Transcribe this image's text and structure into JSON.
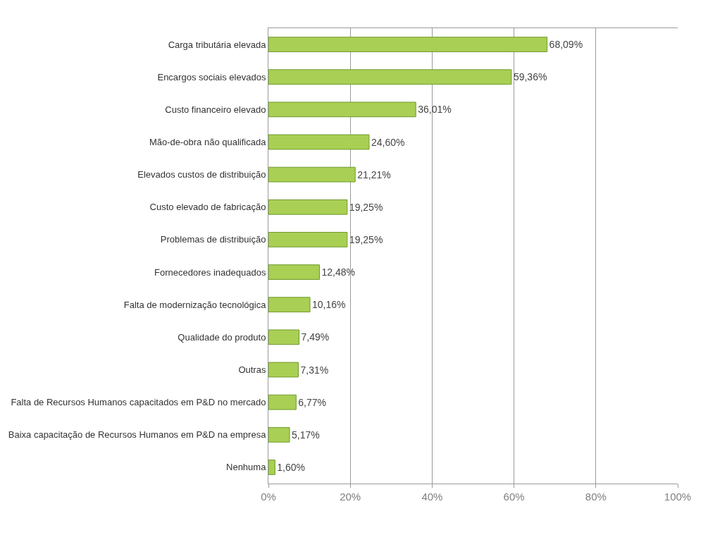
{
  "chart_data": {
    "type": "bar",
    "orientation": "horizontal",
    "categories": [
      "Carga tributária elevada",
      "Encargos sociais elevados",
      "Custo financeiro elevado",
      "Mão-de-obra não qualificada",
      "Elevados custos de distribuição",
      "Custo elevado de fabricação",
      "Problemas de distribuição",
      "Fornecedores inadequados",
      "Falta de modernização tecnológica",
      "Qualidade do produto",
      "Outras",
      "Falta de Recursos Humanos capacitados em P&D no mercado",
      "Baixa capacitação de Recursos Humanos em P&D na empresa",
      "Nenhuma"
    ],
    "values": [
      68.09,
      59.36,
      36.01,
      24.6,
      21.21,
      19.25,
      19.25,
      12.48,
      10.16,
      7.49,
      7.31,
      6.77,
      5.17,
      1.6
    ],
    "value_labels": [
      "68,09%",
      "59,36%",
      "36,01%",
      "24,60%",
      "21,21%",
      "19,25%",
      "19,25%",
      "12,48%",
      "10,16%",
      "7,49%",
      "7,31%",
      "6,77%",
      "5,17%",
      "1,60%"
    ],
    "color": "#a9cf54",
    "xlim": [
      0,
      100
    ],
    "xticks": [
      {
        "value": 0,
        "label": "0%"
      },
      {
        "value": 20,
        "label": "20%"
      },
      {
        "value": 40,
        "label": "40%"
      },
      {
        "value": 60,
        "label": "60%"
      },
      {
        "value": 80,
        "label": "80%"
      },
      {
        "value": 100,
        "label": "100%"
      }
    ],
    "grid": "x",
    "legend": false
  }
}
